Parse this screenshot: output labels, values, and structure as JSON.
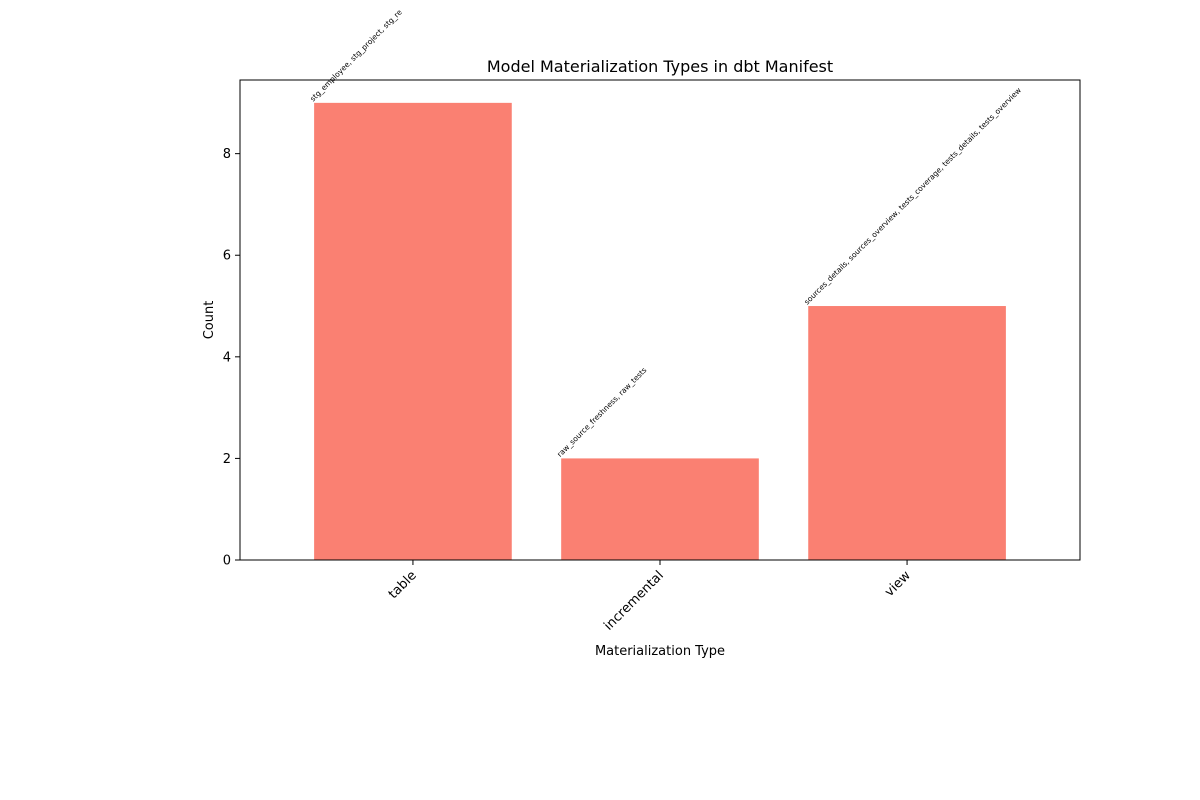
{
  "chart_data": {
    "type": "bar",
    "title": "Model Materialization Types in dbt Manifest",
    "xlabel": "Materialization Type",
    "ylabel": "Count",
    "categories": [
      "table",
      "incremental",
      "view"
    ],
    "values": [
      9,
      2,
      5
    ],
    "annotations": [
      "stg_employee, stg_project, stg_re",
      "raw_source_freshness, raw_tests",
      "sources_details, sources_overview, tests_coverage, tests_details, tests_overview"
    ],
    "ylim": [
      0,
      9.45
    ],
    "yticks": [
      0,
      2,
      4,
      6,
      8
    ],
    "grid": false,
    "bar_color": "#fa8072"
  }
}
